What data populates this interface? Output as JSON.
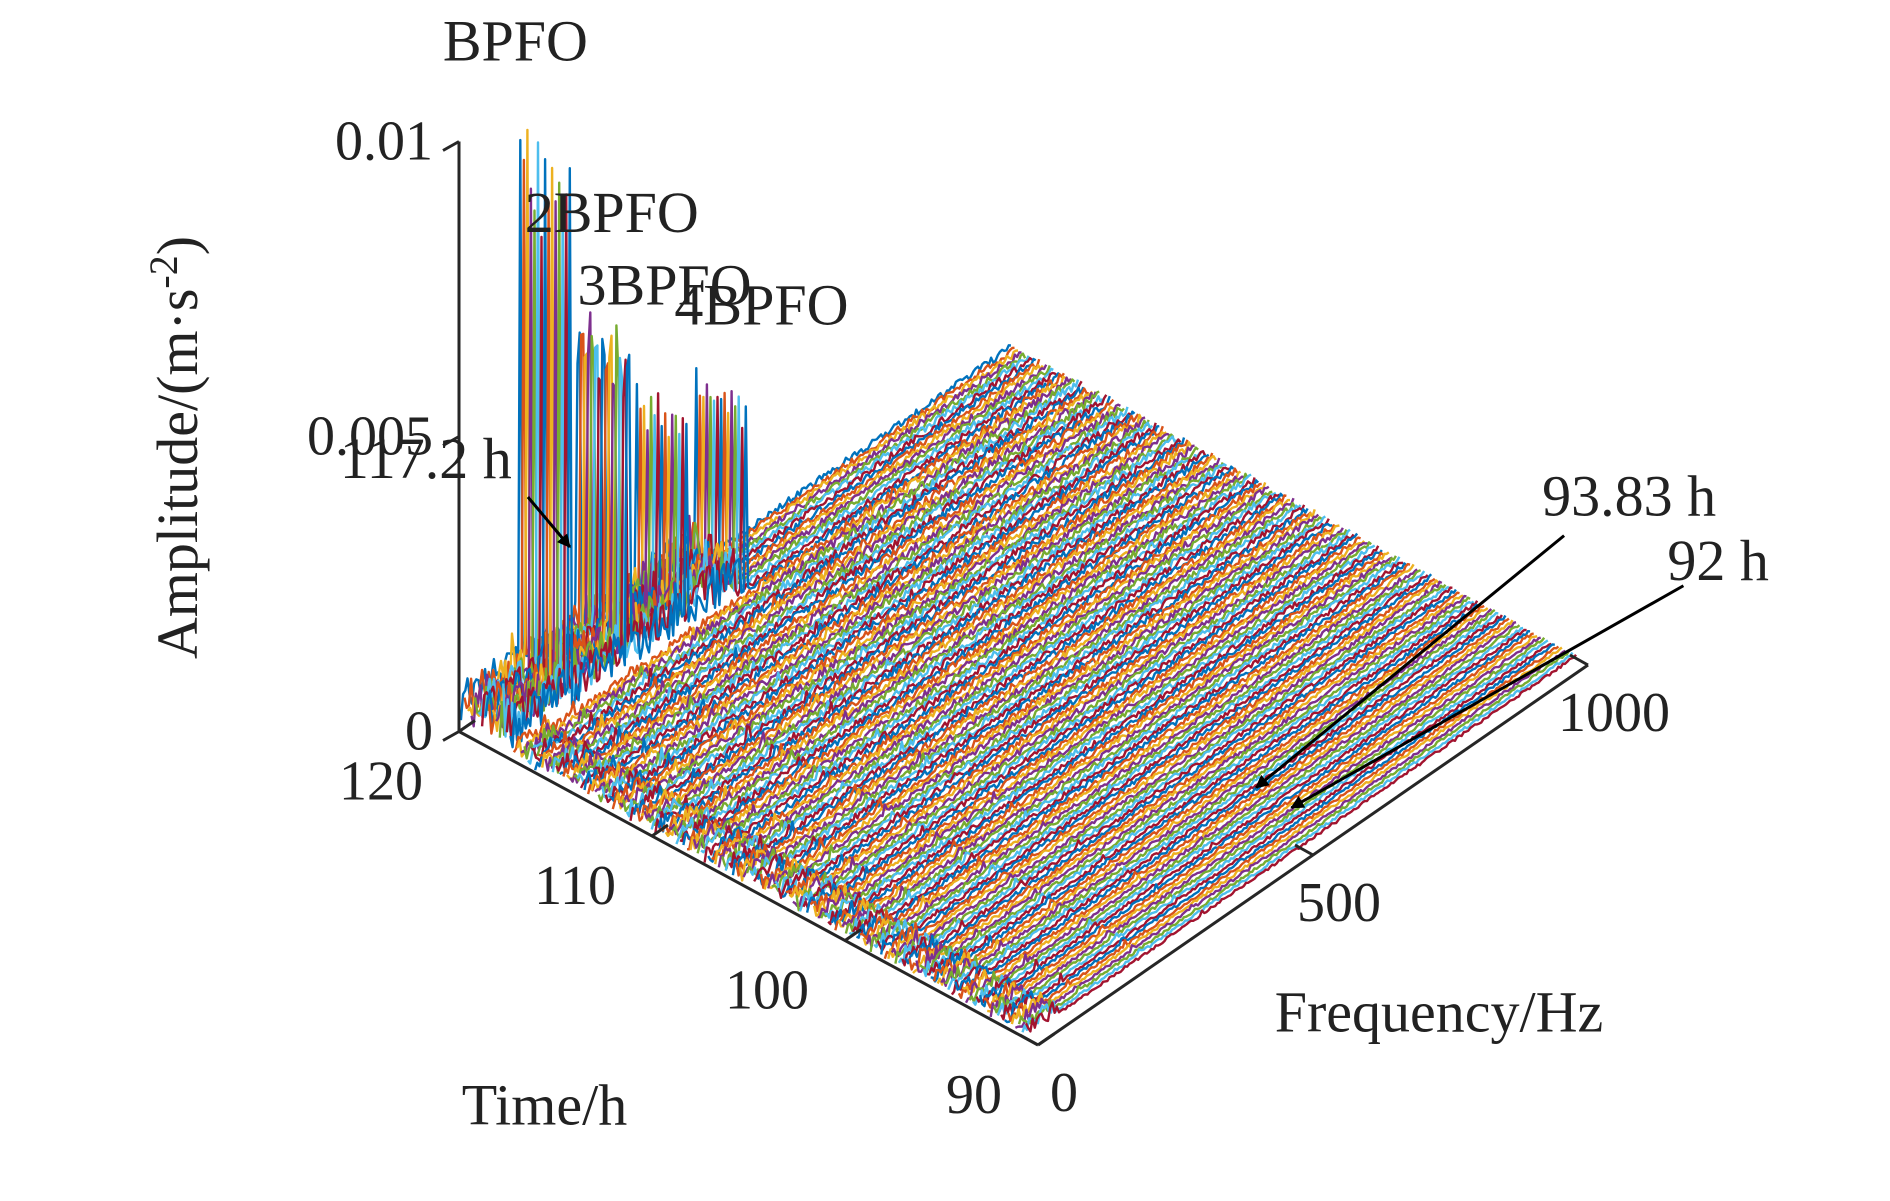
{
  "chart_data": {
    "type": "waterfall",
    "title": "",
    "xlabel": "Frequency/Hz",
    "ylabel": "Time/h",
    "zlabel_base": "Amplitude/(m·s",
    "zlabel_exp": "-2",
    "zlabel_close": ")",
    "xlim": [
      0,
      1000
    ],
    "ylim": [
      90,
      120
    ],
    "zlim": [
      0,
      0.01
    ],
    "x_ticks": [
      "0",
      "500",
      "1000"
    ],
    "y_ticks": [
      "90",
      "100",
      "110",
      "120"
    ],
    "z_ticks": [
      "0",
      "0.005",
      "0.01"
    ],
    "grid": false,
    "legend": "none",
    "time_range_h": [
      90.6,
      119.9
    ],
    "fault_onset_h": 117.2,
    "harmonics": [
      {
        "name": "BPFO",
        "frequency_hz": 107,
        "peak_amplitude": 0.0097
      },
      {
        "name": "2BPFO",
        "frequency_hz": 214,
        "peak_amplitude": 0.0059
      },
      {
        "name": "3BPFO",
        "frequency_hz": 321,
        "peak_amplitude": 0.0039
      },
      {
        "name": "4BPFO",
        "frequency_hz": 428,
        "peak_amplitude": 0.0035
      }
    ],
    "series_colors": [
      "#0072BD",
      "#D95319",
      "#EDB120",
      "#7E2F8E",
      "#77AC30",
      "#4DBEEE",
      "#A2142F"
    ],
    "annotations": [
      {
        "text": "BPFO",
        "target": "harmonic",
        "ref": 0
      },
      {
        "text": "2BPFO",
        "target": "harmonic",
        "ref": 1
      },
      {
        "text": "3BPFO",
        "target": "harmonic",
        "ref": 2
      },
      {
        "text": "4BPFO",
        "target": "harmonic",
        "ref": 3
      },
      {
        "text": "117.2 h",
        "target": "time_h",
        "ref": 117.2
      },
      {
        "text": "93.83 h",
        "target": "time_h",
        "ref": 93.83
      },
      {
        "text": "92 h",
        "target": "time_h",
        "ref": 92
      }
    ]
  }
}
